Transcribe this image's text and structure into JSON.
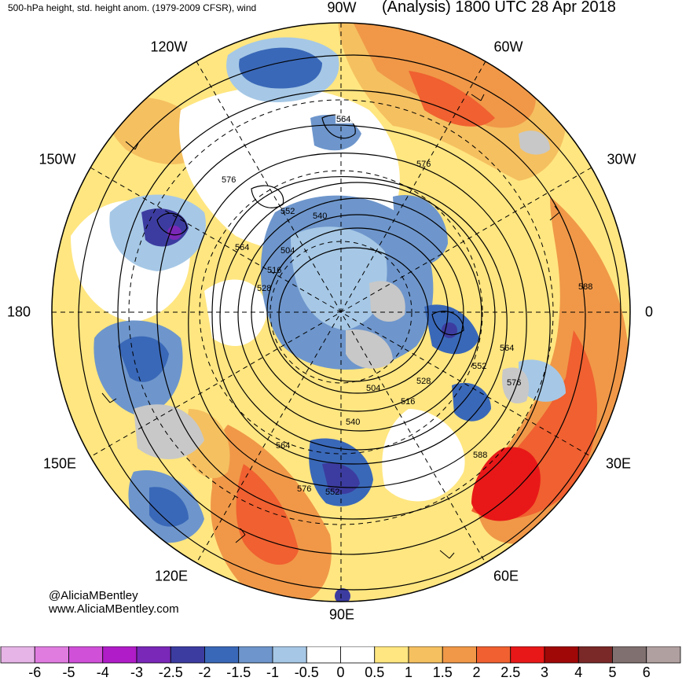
{
  "header": {
    "left_title": "500-hPa height, std. height anom. (1979-2009 CFSR), wind",
    "right_title": "(Analysis) 1800 UTC 28 Apr 2018"
  },
  "longitude_labels": {
    "lon_90w": "90W",
    "lon_120w": "120W",
    "lon_60w": "60W",
    "lon_150w": "150W",
    "lon_30w": "30W",
    "lon_180": "180",
    "lon_0": "0",
    "lon_150e": "150E",
    "lon_30e": "30E",
    "lon_120e": "120E",
    "lon_60e": "60E",
    "lon_90e": "90E"
  },
  "contour_labels": [
    "504",
    "516",
    "528",
    "540",
    "552",
    "564",
    "576",
    "588"
  ],
  "credits": {
    "twitter": "@AliciaMBentley",
    "website": "www.AliciaMBentley.com"
  },
  "colorbar": {
    "ticks": [
      "-6",
      "-5",
      "-4",
      "-3",
      "-2.5",
      "-2",
      "-1.5",
      "-1",
      "-0.5",
      "0",
      "0.5",
      "1",
      "1.5",
      "2",
      "2.5",
      "3",
      "4",
      "5",
      "6"
    ],
    "colors": [
      "#e6b4e6",
      "#e07ce0",
      "#d050d8",
      "#b01cc8",
      "#7a28b8",
      "#3c3ca0",
      "#3a68b8",
      "#6e96cc",
      "#a6c8e6",
      "#ffffff",
      "#ffffff",
      "#ffe680",
      "#f5c060",
      "#f09848",
      "#f06030",
      "#e81818",
      "#a00808",
      "#7a2828",
      "#807070",
      "#b0a0a0"
    ]
  },
  "colors": {
    "land_gray": "#c8c8c8",
    "contour": "#000000"
  }
}
